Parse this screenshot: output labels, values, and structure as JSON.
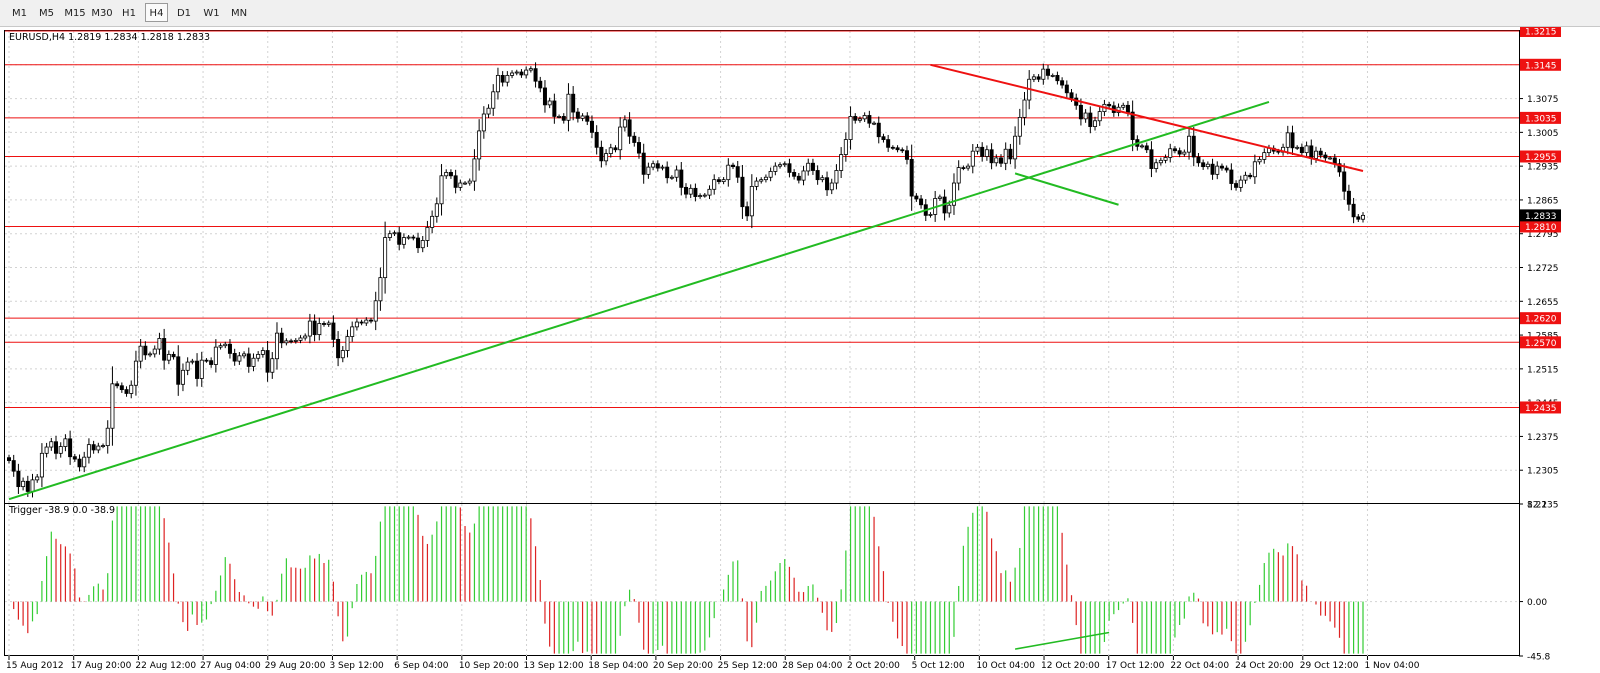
{
  "toolbar": {
    "timeframes": [
      "M1",
      "M5",
      "M15",
      "M30",
      "H1",
      "H4",
      "D1",
      "W1",
      "MN"
    ],
    "active": "H4"
  },
  "chart_data": {
    "type": "candlestick",
    "title": "EURUSD,H4  1.2819 1.2834 1.2818 1.2833",
    "symbol": "EURUSD",
    "timeframe": "H4",
    "ohlc_last": {
      "open": 1.2819,
      "high": 1.2834,
      "low": 1.2818,
      "close": 1.2833
    },
    "current_price": "1.2833",
    "y_range": [
      1.2235,
      1.3215
    ],
    "y_ticks": [
      "1.2235",
      "1.2305",
      "1.2375",
      "1.2445",
      "1.2515",
      "1.2585",
      "1.2655",
      "1.2725",
      "1.2795",
      "1.2865",
      "1.2935",
      "1.3005",
      "1.3075",
      "1.3145",
      "1.3215"
    ],
    "x_ticks": [
      "15 Aug 2012",
      "17 Aug 20:00",
      "22 Aug 12:00",
      "27 Aug 04:00",
      "29 Aug 20:00",
      "3 Sep 12:00",
      "6 Sep 04:00",
      "10 Sep 20:00",
      "13 Sep 12:00",
      "18 Sep 04:00",
      "20 Sep 20:00",
      "25 Sep 12:00",
      "28 Sep 04:00",
      "2 Oct 20:00",
      "5 Oct 12:00",
      "10 Oct 04:00",
      "12 Oct 20:00",
      "17 Oct 12:00",
      "22 Oct 04:00",
      "24 Oct 20:00",
      "29 Oct 12:00",
      "1 Nov 04:00"
    ],
    "horizontal_levels": [
      "1.3215",
      "1.3145",
      "1.3035",
      "1.2955",
      "1.2810",
      "1.2620",
      "1.2570",
      "1.2435"
    ],
    "trendlines": [
      {
        "color": "#22bb22",
        "from": [
          0,
          1.2245
        ],
        "to": [
          268,
          1.3068
        ]
      },
      {
        "color": "#ee1111",
        "from": [
          196,
          1.3145
        ],
        "to": [
          288,
          1.2925
        ]
      },
      {
        "color": "#22bb22",
        "from": [
          214,
          1.292
        ],
        "to": [
          236,
          1.2855
        ]
      },
      {
        "color": "#22bb22",
        "trigger_panel": true,
        "from": [
          214,
          -40
        ],
        "to": [
          234,
          -26
        ]
      }
    ],
    "close": [
      1.2325,
      1.2303,
      1.2271,
      1.2282,
      1.2261,
      1.2285,
      1.2291,
      1.234,
      1.2353,
      1.2364,
      1.234,
      1.2354,
      1.237,
      1.2333,
      1.2328,
      1.2312,
      1.2332,
      1.2358,
      1.2347,
      1.2355,
      1.2356,
      1.2392,
      1.2484,
      1.248,
      1.2472,
      1.2464,
      1.2481,
      1.2531,
      1.2562,
      1.2544,
      1.2546,
      1.2556,
      1.2578,
      1.2533,
      1.2545,
      1.254,
      1.2483,
      1.2512,
      1.2529,
      1.2531,
      1.2495,
      1.2533,
      1.2532,
      1.2524,
      1.256,
      1.2563,
      1.2566,
      1.2547,
      1.2531,
      1.2542,
      1.2546,
      1.252,
      1.2537,
      1.2545,
      1.2553,
      1.2508,
      1.2536,
      1.2589,
      1.2569,
      1.2573,
      1.2572,
      1.2574,
      1.2579,
      1.2583,
      1.2614,
      1.2586,
      1.2609,
      1.2607,
      1.261,
      1.2576,
      1.2538,
      1.2553,
      1.2582,
      1.2602,
      1.2612,
      1.261,
      1.2616,
      1.2614,
      1.2656,
      1.2704,
      1.2787,
      1.2795,
      1.2797,
      1.2773,
      1.2787,
      1.2788,
      1.2786,
      1.2766,
      1.2781,
      1.2808,
      1.2831,
      1.2857,
      1.2915,
      1.2922,
      1.2915,
      1.2891,
      1.29,
      1.29,
      1.2904,
      1.295,
      1.3008,
      1.3043,
      1.3055,
      1.3089,
      1.3123,
      1.3109,
      1.3123,
      1.3128,
      1.313,
      1.3124,
      1.3134,
      1.3137,
      1.3111,
      1.3097,
      1.3062,
      1.307,
      1.3038,
      1.3038,
      1.303,
      1.3084,
      1.3047,
      1.3034,
      1.3039,
      1.3028,
      1.3005,
      1.2974,
      1.2946,
      1.2961,
      1.2973,
      1.2969,
      1.3016,
      1.3031,
      1.2997,
      1.2984,
      1.2962,
      1.2918,
      1.2933,
      1.294,
      1.2931,
      1.2933,
      1.2911,
      1.2912,
      1.2927,
      1.2891,
      1.2877,
      1.2889,
      1.2872,
      1.2874,
      1.2875,
      1.2887,
      1.2907,
      1.2903,
      1.2907,
      1.2937,
      1.2934,
      1.2912,
      1.2851,
      1.2832,
      1.2893,
      1.2904,
      1.2907,
      1.2912,
      1.2924,
      1.2935,
      1.2938,
      1.294,
      1.2922,
      1.2914,
      1.2906,
      1.2925,
      1.2941,
      1.2926,
      1.2907,
      1.2911,
      1.2886,
      1.29,
      1.2926,
      1.2959,
      1.299,
      1.3038,
      1.303,
      1.3033,
      1.304,
      1.3024,
      1.3024,
      1.2996,
      1.299,
      1.2974,
      1.2973,
      1.2969,
      1.2967,
      1.2949,
      1.2873,
      1.2867,
      1.2855,
      1.2833,
      1.2835,
      1.2868,
      1.2871,
      1.2838,
      1.2854,
      1.29,
      1.2932,
      1.2931,
      1.2935,
      1.2966,
      1.2974,
      1.2955,
      1.2969,
      1.2942,
      1.2952,
      1.2941,
      1.297,
      1.295,
      1.2997,
      1.3036,
      1.3072,
      1.3115,
      1.312,
      1.3115,
      1.3136,
      1.3123,
      1.3123,
      1.3112,
      1.3103,
      1.3087,
      1.3076,
      1.3061,
      1.3033,
      1.3045,
      1.3017,
      1.3029,
      1.3048,
      1.3063,
      1.306,
      1.3046,
      1.3057,
      1.3061,
      1.3047,
      1.299,
      1.2976,
      1.2977,
      1.2969,
      1.293,
      1.2942,
      1.2947,
      1.2953,
      1.2971,
      1.2967,
      1.296,
      1.2964,
      1.2997,
      1.2954,
      1.2942,
      1.2934,
      1.2939,
      1.2918,
      1.2935,
      1.2931,
      1.2927,
      1.2899,
      1.2891,
      1.2906,
      1.2916,
      1.2913,
      1.2944,
      1.2949,
      1.2963,
      1.2972,
      1.2966,
      1.2964,
      1.2974,
      1.3004,
      1.2973,
      1.2974,
      1.2963,
      1.2977,
      1.2951,
      1.2966,
      1.2958,
      1.2952,
      1.2952,
      1.294,
      1.2923,
      1.2883,
      1.2856,
      1.283,
      1.2825,
      1.2833
    ],
    "trigger_indicator": {
      "label": "Trigger -38.9 0.0 -38.9",
      "values": [
        -38.9,
        0.0,
        -38.9
      ],
      "y_max": "82.1",
      "y_zero": "0.00",
      "y_min": "-45.8",
      "colors": {
        "rising": "#33cc33",
        "falling": "#dd2222"
      }
    },
    "colors": {
      "level_line": "#ee1111",
      "trend_green": "#22bb22",
      "trend_red": "#ee1111",
      "candle": "#000000",
      "price_badge": "#ee1111"
    }
  }
}
